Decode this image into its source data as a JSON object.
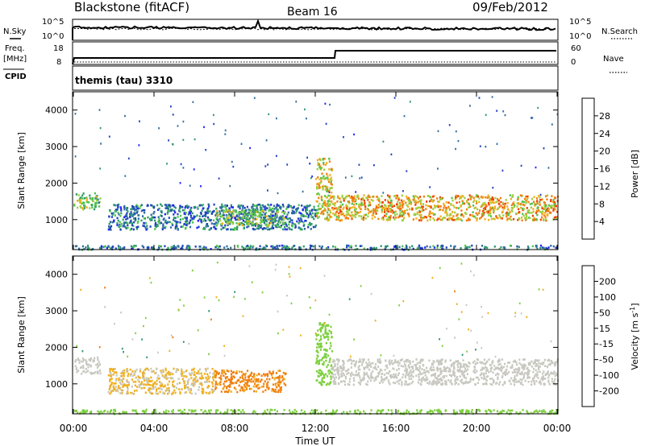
{
  "header": {
    "title": "Blackstone (fitACF)",
    "beam": "Beam 16",
    "date": "09/Feb/2012"
  },
  "strip_panels": {
    "left_labels": {
      "nsky": "N.Sky",
      "freq_line1": "Freq.",
      "freq_line2": "[MHz]",
      "cpid": "CPID"
    },
    "right_labels": {
      "nsearch": "N.Search",
      "nave": "Nave"
    },
    "noise_ticks_left": [
      "10^5",
      "10^0"
    ],
    "noise_ticks_right": [
      "10^5",
      "10^0"
    ],
    "freq_ticks": [
      "18",
      "8"
    ],
    "nave_ticks": [
      "60",
      "0"
    ],
    "cpid_text": "themis (tau) 3310"
  },
  "colors": {
    "power_scale": [
      "#2020ff",
      "#2040c0",
      "#2f6fa0",
      "#2e9a6a",
      "#4fc44f",
      "#9ad040",
      "#f0b020",
      "#f08010",
      "#f04000",
      "#e00000"
    ],
    "velocity_scale": [
      "#e00000",
      "#f04000",
      "#f08010",
      "#f0b020",
      "#c8c8c0",
      "#c8c8c0",
      "#7ed040",
      "#2e9a6a",
      "#2040c0",
      "#2020ff"
    ],
    "ground_scatter": "#c0c0b8",
    "frame": "#000000"
  },
  "chart_data": [
    {
      "type": "heatmap",
      "panel": "power",
      "xlabel": "Time UT",
      "ylabel": "Slant Range [km]",
      "x_ticks": [
        "00:00",
        "04:00",
        "08:00",
        "12:00",
        "16:00",
        "20:00",
        "00:00"
      ],
      "x_range_hours": [
        0,
        24
      ],
      "y_ticks": [
        1000,
        2000,
        3000,
        4000
      ],
      "ylim": [
        180,
        4500
      ],
      "colorbar": {
        "label": "Power [dB]",
        "ticks": [
          4,
          8,
          12,
          16,
          20,
          24,
          28
        ],
        "range": [
          0,
          30
        ]
      },
      "echo_bands": [
        {
          "t_start": 0.0,
          "t_end": 1.3,
          "range_low": 1300,
          "range_high": 1750,
          "value": 14
        },
        {
          "t_start": 1.7,
          "t_end": 12.0,
          "range_low": 750,
          "range_high": 1450,
          "value": 8
        },
        {
          "t_start": 7.0,
          "t_end": 10.5,
          "range_low": 850,
          "range_high": 1300,
          "value": 14
        },
        {
          "t_start": 12.0,
          "t_end": 12.8,
          "range_low": 1000,
          "range_high": 2700,
          "value": 18
        },
        {
          "t_start": 12.8,
          "t_end": 24.0,
          "range_low": 1000,
          "range_high": 1700,
          "value": 20
        },
        {
          "t_start": 0.0,
          "t_end": 24.0,
          "range_low": 200,
          "range_high": 320,
          "value": 8
        }
      ]
    },
    {
      "type": "heatmap",
      "panel": "velocity",
      "xlabel": "Time UT",
      "ylabel": "Slant Range [km]",
      "x_ticks": [
        "00:00",
        "04:00",
        "08:00",
        "12:00",
        "16:00",
        "20:00",
        "00:00"
      ],
      "x_range_hours": [
        0,
        24
      ],
      "y_ticks": [
        1000,
        2000,
        3000,
        4000
      ],
      "ylim": [
        180,
        4500
      ],
      "colorbar": {
        "label_main": "Velocity [m s",
        "label_sup": "-1",
        "label_end": "]",
        "ticks": [
          200,
          100,
          50,
          15,
          -15,
          -50,
          -100,
          -200
        ]
      },
      "echo_bands": [
        {
          "t_start": 0.0,
          "t_end": 1.3,
          "range_low": 1300,
          "range_high": 1750,
          "value": 0
        },
        {
          "t_start": 1.7,
          "t_end": 7.0,
          "range_low": 750,
          "range_high": 1450,
          "value": -20
        },
        {
          "t_start": 7.0,
          "t_end": 10.5,
          "range_low": 800,
          "range_high": 1400,
          "value": -60
        },
        {
          "t_start": 12.0,
          "t_end": 12.8,
          "range_low": 1000,
          "range_high": 2700,
          "value": 30
        },
        {
          "t_start": 12.8,
          "t_end": 24.0,
          "range_low": 1000,
          "range_high": 1700,
          "value": 0
        },
        {
          "t_start": 0.0,
          "t_end": 24.0,
          "range_low": 200,
          "range_high": 320,
          "value": 30
        }
      ]
    }
  ]
}
